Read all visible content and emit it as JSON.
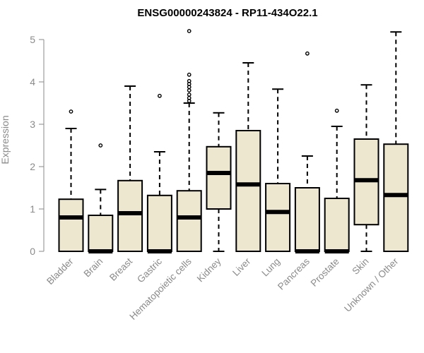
{
  "chart_data": {
    "type": "box",
    "title": "ENSG00000243824 - RP11-434O22.1",
    "xlabel": "",
    "ylabel": "Expression",
    "ylim": [
      0,
      5.3
    ],
    "yticks": [
      0,
      1,
      2,
      3,
      4,
      5
    ],
    "grid": false,
    "colors": {
      "box_fill": "#EEE7CF",
      "stroke": "#000000",
      "axis": "#8a8a8a"
    },
    "categories": [
      "Bladder",
      "Brain",
      "Breast",
      "Gastric",
      "Hematopoietic cells",
      "Kidney",
      "Liver",
      "Lung",
      "Pancreas",
      "Prostate",
      "Skin",
      "Unknown / Other"
    ],
    "boxes": [
      {
        "category": "Bladder",
        "min": 0,
        "q1": 0,
        "median": 0.8,
        "q3": 1.23,
        "max": 2.9,
        "outliers": [
          3.3
        ]
      },
      {
        "category": "Brain",
        "min": 0,
        "q1": 0,
        "median": 0,
        "q3": 0.85,
        "max": 1.46,
        "outliers": [
          2.5
        ]
      },
      {
        "category": "Breast",
        "min": 0,
        "q1": 0,
        "median": 0.9,
        "q3": 1.67,
        "max": 3.9,
        "outliers": []
      },
      {
        "category": "Gastric",
        "min": 0,
        "q1": 0,
        "median": 0,
        "q3": 1.32,
        "max": 2.35,
        "outliers": [
          3.67
        ]
      },
      {
        "category": "Hematopoietic cells",
        "min": 0,
        "q1": 0,
        "median": 0.8,
        "q3": 1.43,
        "max": 3.5,
        "outliers": [
          3.55,
          3.62,
          3.7,
          3.8,
          3.88,
          3.95,
          4.02,
          4.17,
          5.2
        ]
      },
      {
        "category": "Kidney",
        "min": 0,
        "q1": 1.0,
        "median": 1.85,
        "q3": 2.47,
        "max": 3.27,
        "outliers": []
      },
      {
        "category": "Liver",
        "min": 0,
        "q1": 0,
        "median": 1.58,
        "q3": 2.85,
        "max": 4.45,
        "outliers": []
      },
      {
        "category": "Lung",
        "min": 0,
        "q1": 0,
        "median": 0.93,
        "q3": 1.6,
        "max": 3.83,
        "outliers": []
      },
      {
        "category": "Pancreas",
        "min": 0,
        "q1": 0,
        "median": 0,
        "q3": 1.5,
        "max": 2.25,
        "outliers": [
          4.67
        ]
      },
      {
        "category": "Prostate",
        "min": 0,
        "q1": 0,
        "median": 0,
        "q3": 1.25,
        "max": 2.95,
        "outliers": [
          3.32
        ]
      },
      {
        "category": "Skin",
        "min": 0,
        "q1": 0.63,
        "median": 1.68,
        "q3": 2.65,
        "max": 3.93,
        "outliers": []
      },
      {
        "category": "Unknown / Other",
        "min": 0,
        "q1": 0,
        "median": 1.33,
        "q3": 2.53,
        "max": 5.18,
        "outliers": []
      }
    ]
  }
}
